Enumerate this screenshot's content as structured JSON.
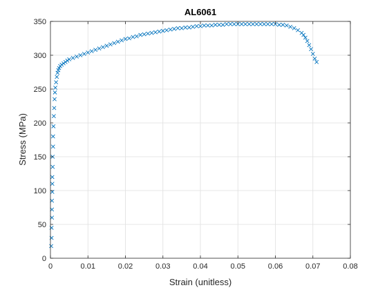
{
  "chart_data": {
    "type": "scatter",
    "title": "AL6061",
    "xlabel": "Strain (unitless)",
    "ylabel": "Stress (MPa)",
    "xlim": [
      0,
      0.08
    ],
    "ylim": [
      0,
      350
    ],
    "xticks": [
      0,
      0.01,
      0.02,
      0.03,
      0.04,
      0.05,
      0.06,
      0.07,
      0.08
    ],
    "xtick_labels": [
      "0",
      "0.01",
      "0.02",
      "0.03",
      "0.04",
      "0.05",
      "0.06",
      "0.07",
      "0.08"
    ],
    "yticks": [
      0,
      50,
      100,
      150,
      200,
      250,
      300,
      350
    ],
    "ytick_labels": [
      "0",
      "50",
      "100",
      "150",
      "200",
      "250",
      "300",
      "350"
    ],
    "grid": true,
    "marker": "x",
    "series": [
      {
        "color": "#0072BD",
        "x": [
          0.0002,
          0.0003,
          0.0003,
          0.0004,
          0.0004,
          0.0004,
          0.0005,
          0.0005,
          0.0005,
          0.0006,
          0.0006,
          0.0007,
          0.0007,
          0.0008,
          0.0009,
          0.001,
          0.0011,
          0.0012,
          0.0013,
          0.0015,
          0.0017,
          0.0019,
          0.0021,
          0.0023,
          0.0026,
          0.003,
          0.0035,
          0.004,
          0.0045,
          0.005,
          0.006,
          0.007,
          0.008,
          0.009,
          0.01,
          0.011,
          0.012,
          0.013,
          0.014,
          0.015,
          0.016,
          0.017,
          0.018,
          0.019,
          0.02,
          0.021,
          0.022,
          0.023,
          0.024,
          0.025,
          0.026,
          0.027,
          0.028,
          0.029,
          0.03,
          0.031,
          0.032,
          0.033,
          0.034,
          0.035,
          0.036,
          0.037,
          0.038,
          0.039,
          0.04,
          0.041,
          0.042,
          0.043,
          0.044,
          0.045,
          0.046,
          0.047,
          0.048,
          0.049,
          0.05,
          0.051,
          0.052,
          0.053,
          0.054,
          0.055,
          0.056,
          0.057,
          0.058,
          0.059,
          0.06,
          0.061,
          0.062,
          0.063,
          0.064,
          0.065,
          0.066,
          0.067,
          0.0675,
          0.068,
          0.0685,
          0.069,
          0.0695,
          0.07,
          0.0705,
          0.071
        ],
        "y": [
          18,
          30,
          45,
          60,
          72,
          85,
          98,
          110,
          120,
          135,
          150,
          165,
          180,
          195,
          210,
          222,
          235,
          245,
          252,
          260,
          268,
          274,
          278,
          281,
          284,
          286,
          288,
          290,
          292,
          294,
          296,
          298,
          300,
          302,
          304,
          306,
          308,
          310,
          312,
          314,
          316,
          318,
          320,
          322,
          324,
          325,
          327,
          328,
          330,
          331,
          332,
          333,
          334,
          335,
          336,
          337,
          338,
          339,
          340,
          340,
          341,
          341,
          342,
          343,
          343,
          344,
          344,
          344,
          345,
          345,
          345,
          346,
          346,
          346,
          346,
          346,
          346,
          346,
          346,
          346,
          346,
          346,
          346,
          346,
          346,
          345,
          345,
          344,
          342,
          340,
          337,
          333,
          330,
          326,
          321,
          315,
          309,
          302,
          295,
          290
        ]
      }
    ]
  }
}
